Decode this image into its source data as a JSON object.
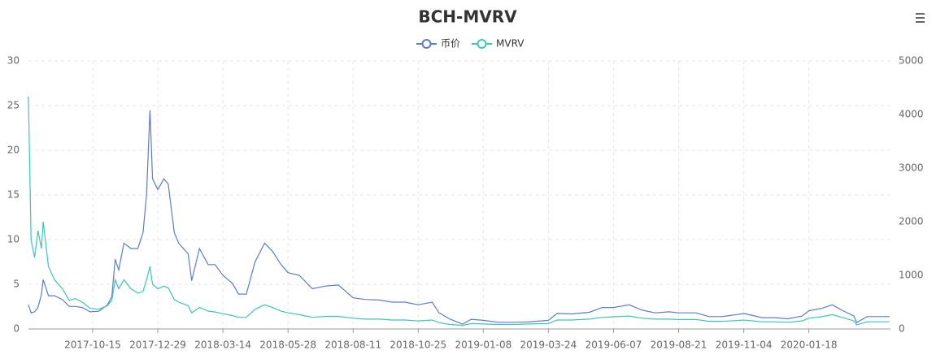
{
  "chart_data": {
    "type": "line",
    "title": "BCH-MVRV",
    "x": [
      "2017-08-02",
      "2017-08-05",
      "2017-08-09",
      "2017-08-13",
      "2017-08-17",
      "2017-08-19",
      "2017-08-25",
      "2017-09-01",
      "2017-09-10",
      "2017-09-18",
      "2017-09-25",
      "2017-10-03",
      "2017-10-12",
      "2017-10-22",
      "2017-11-01",
      "2017-11-06",
      "2017-11-10",
      "2017-11-14",
      "2017-11-20",
      "2017-11-28",
      "2017-12-06",
      "2017-12-12",
      "2017-12-16",
      "2017-12-20",
      "2017-12-23",
      "2017-12-29",
      "2018-01-05",
      "2018-01-10",
      "2018-01-17",
      "2018-01-22",
      "2018-02-02",
      "2018-02-06",
      "2018-02-15",
      "2018-02-25",
      "2018-03-05",
      "2018-03-14",
      "2018-03-25",
      "2018-04-01",
      "2018-04-10",
      "2018-04-20",
      "2018-05-01",
      "2018-05-10",
      "2018-05-20",
      "2018-05-28",
      "2018-06-10",
      "2018-06-25",
      "2018-07-10",
      "2018-07-25",
      "2018-08-11",
      "2018-08-25",
      "2018-09-10",
      "2018-09-25",
      "2018-10-10",
      "2018-10-25",
      "2018-11-10",
      "2018-11-18",
      "2018-12-01",
      "2018-12-15",
      "2018-12-25",
      "2019-01-08",
      "2019-01-25",
      "2019-02-10",
      "2019-03-01",
      "2019-03-24",
      "2019-04-03",
      "2019-04-20",
      "2019-05-10",
      "2019-05-25",
      "2019-06-07",
      "2019-06-25",
      "2019-07-10",
      "2019-07-25",
      "2019-08-10",
      "2019-08-21",
      "2019-09-10",
      "2019-09-25",
      "2019-10-10",
      "2019-10-28",
      "2019-11-04",
      "2019-11-25",
      "2019-12-10",
      "2019-12-25",
      "2020-01-10",
      "2020-01-18",
      "2020-02-01",
      "2020-02-14",
      "2020-02-25",
      "2020-03-10",
      "2020-03-13",
      "2020-03-25",
      "2020-04-10",
      "2020-04-20"
    ],
    "xlim": [
      "2017-08-02",
      "2020-04-21"
    ],
    "xticks": [
      "2017-10-15",
      "2017-12-29",
      "2018-03-14",
      "2018-05-28",
      "2018-08-11",
      "2018-10-25",
      "2019-01-08",
      "2019-03-24",
      "2019-06-07",
      "2019-08-21",
      "2019-11-04",
      "2020-01-18"
    ],
    "ylim": [
      0,
      30
    ],
    "yticks": [
      0,
      5,
      10,
      15,
      20,
      25,
      30
    ],
    "y2lim": [
      0,
      5000
    ],
    "y2ticks": [
      0,
      1000,
      2000,
      3000,
      4000,
      5000
    ],
    "grid": true,
    "legend": "top",
    "series": [
      {
        "name": "币价",
        "color": "#5b7bd5",
        "axis": "y2",
        "values": [
          450,
          300,
          320,
          400,
          650,
          920,
          620,
          620,
          550,
          420,
          420,
          400,
          320,
          330,
          450,
          600,
          1300,
          1100,
          1600,
          1500,
          1500,
          1800,
          2500,
          4080,
          2800,
          2600,
          2800,
          2700,
          1800,
          1600,
          1400,
          900,
          1500,
          1200,
          1200,
          1000,
          850,
          650,
          650,
          1250,
          1600,
          1450,
          1200,
          1050,
          1000,
          750,
          800,
          820,
          580,
          550,
          540,
          500,
          500,
          450,
          500,
          300,
          180,
          90,
          180,
          160,
          125,
          125,
          130,
          160,
          290,
          280,
          310,
          400,
          400,
          450,
          350,
          300,
          320,
          300,
          300,
          230,
          230,
          270,
          290,
          210,
          210,
          190,
          240,
          340,
          380,
          450,
          350,
          240,
          120,
          230,
          230,
          230
        ]
      },
      {
        "name": "MVRV",
        "color": "#37c8b8",
        "values": [
          26,
          10,
          8,
          11,
          9,
          12,
          7,
          5.5,
          4.5,
          3.2,
          3.4,
          3,
          2.3,
          2.2,
          2.6,
          3.2,
          5.5,
          4.5,
          5.5,
          4.5,
          4,
          4.2,
          5.5,
          7,
          5,
          4.5,
          4.8,
          4.6,
          3.3,
          3,
          2.6,
          1.8,
          2.4,
          2,
          1.9,
          1.7,
          1.5,
          1.3,
          1.3,
          2.2,
          2.7,
          2.4,
          2,
          1.8,
          1.6,
          1.3,
          1.4,
          1.4,
          1.2,
          1.1,
          1.1,
          1,
          1,
          0.9,
          1,
          0.7,
          0.5,
          0.4,
          0.6,
          0.55,
          0.5,
          0.5,
          0.55,
          0.6,
          1,
          1,
          1.1,
          1.3,
          1.35,
          1.45,
          1.2,
          1.1,
          1.1,
          1.05,
          1.05,
          0.85,
          0.85,
          0.95,
          1,
          0.8,
          0.8,
          0.75,
          0.9,
          1.2,
          1.35,
          1.6,
          1.3,
          0.9,
          0.45,
          0.8,
          0.8,
          0.8
        ]
      }
    ]
  }
}
